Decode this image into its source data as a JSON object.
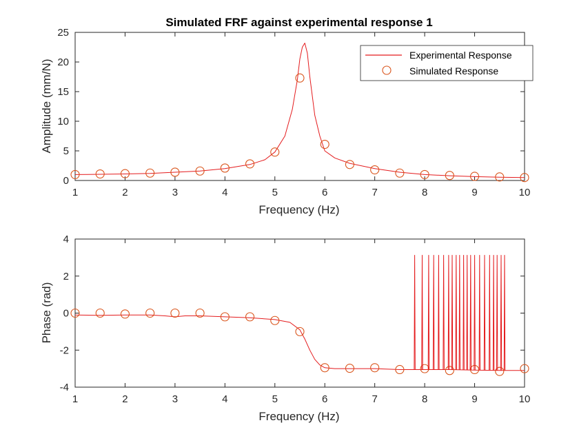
{
  "chart_data": [
    {
      "type": "line",
      "title": "Simulated FRF against experimental response 1",
      "xlabel": "Frequency (Hz)",
      "ylabel": "Amplitude (mm/N)",
      "xlim": [
        1,
        10
      ],
      "ylim": [
        0,
        25
      ],
      "xticks": [
        1,
        2,
        3,
        4,
        5,
        6,
        7,
        8,
        9,
        10
      ],
      "yticks": [
        0,
        5,
        10,
        15,
        20,
        25
      ],
      "grid": false,
      "legend_position": "top-right",
      "series": [
        {
          "name": "Experimental Response",
          "style": "line",
          "color": "#e41a1c",
          "x": [
            1,
            1.5,
            2,
            2.5,
            3,
            3.5,
            4,
            4.5,
            4.8,
            5,
            5.2,
            5.35,
            5.45,
            5.5,
            5.55,
            5.6,
            5.65,
            5.7,
            5.8,
            5.9,
            6,
            6.2,
            6.5,
            7,
            7.5,
            8,
            8.5,
            9,
            9.5,
            10
          ],
          "y": [
            1.0,
            1.05,
            1.1,
            1.2,
            1.4,
            1.6,
            2.0,
            2.7,
            3.5,
            4.8,
            7.5,
            12.0,
            17.0,
            20.5,
            22.5,
            23.2,
            21.5,
            17.5,
            11.0,
            7.5,
            5.0,
            3.8,
            2.9,
            2.0,
            1.4,
            1.0,
            0.8,
            0.65,
            0.55,
            0.5
          ]
        },
        {
          "name": "Simulated Response",
          "style": "markers",
          "color": "#d95319",
          "x": [
            1,
            1.5,
            2,
            2.5,
            3,
            3.5,
            4,
            4.5,
            5,
            5.5,
            6,
            6.5,
            7,
            7.5,
            8,
            8.5,
            9,
            9.5,
            10
          ],
          "y": [
            1.0,
            1.1,
            1.15,
            1.25,
            1.4,
            1.6,
            2.1,
            2.8,
            4.8,
            17.3,
            6.1,
            2.7,
            1.8,
            1.25,
            1.0,
            0.85,
            0.7,
            0.6,
            0.5
          ]
        }
      ]
    },
    {
      "type": "line",
      "title": "",
      "xlabel": "Frequency (Hz)",
      "ylabel": "Phase (rad)",
      "xlim": [
        1,
        10
      ],
      "ylim": [
        -4,
        4
      ],
      "xticks": [
        1,
        2,
        3,
        4,
        5,
        6,
        7,
        8,
        9,
        10
      ],
      "yticks": [
        -4,
        -2,
        0,
        2,
        4
      ],
      "grid": false,
      "series": [
        {
          "name": "Experimental Response",
          "style": "line",
          "color": "#e41a1c",
          "x": [
            1,
            1.5,
            2,
            2.5,
            2.8,
            3,
            3.2,
            3.5,
            4,
            4.5,
            5,
            5.3,
            5.5,
            5.6,
            5.7,
            5.8,
            5.9,
            6,
            6.2,
            6.5,
            7,
            7.5,
            7.8,
            8,
            8.5,
            9,
            9.5,
            10
          ],
          "y": [
            -0.1,
            -0.12,
            -0.1,
            -0.1,
            -0.15,
            -0.2,
            -0.15,
            -0.15,
            -0.2,
            -0.25,
            -0.35,
            -0.5,
            -0.9,
            -1.4,
            -2.0,
            -2.5,
            -2.8,
            -2.95,
            -3.0,
            -3.0,
            -3.0,
            -3.05,
            -3.05,
            -3.05,
            -3.05,
            -3.08,
            -3.1,
            -3.1
          ]
        },
        {
          "name": "Simulated Response",
          "style": "markers",
          "color": "#d95319",
          "x": [
            1,
            1.5,
            2,
            2.5,
            3,
            3.5,
            4,
            4.5,
            5,
            5.5,
            6,
            6.5,
            7,
            7.5,
            8,
            8.5,
            9,
            9.5,
            10
          ],
          "y": [
            0.0,
            0.0,
            -0.05,
            0.0,
            0.0,
            0.0,
            -0.2,
            -0.2,
            -0.4,
            -1.0,
            -2.95,
            -2.98,
            -2.95,
            -3.05,
            -3.0,
            -3.1,
            -3.05,
            -3.15,
            -3.0
          ]
        }
      ],
      "phase_wraps": {
        "description": "vertical wrap spikes to +3.14",
        "top_value": 3.14,
        "x": [
          7.8,
          7.95,
          8.08,
          8.18,
          8.28,
          8.38,
          8.48,
          8.55,
          8.63,
          8.7,
          8.78,
          8.85,
          8.92,
          9.0,
          9.1,
          9.2,
          9.3,
          9.38,
          9.45,
          9.53,
          9.6
        ]
      }
    }
  ]
}
